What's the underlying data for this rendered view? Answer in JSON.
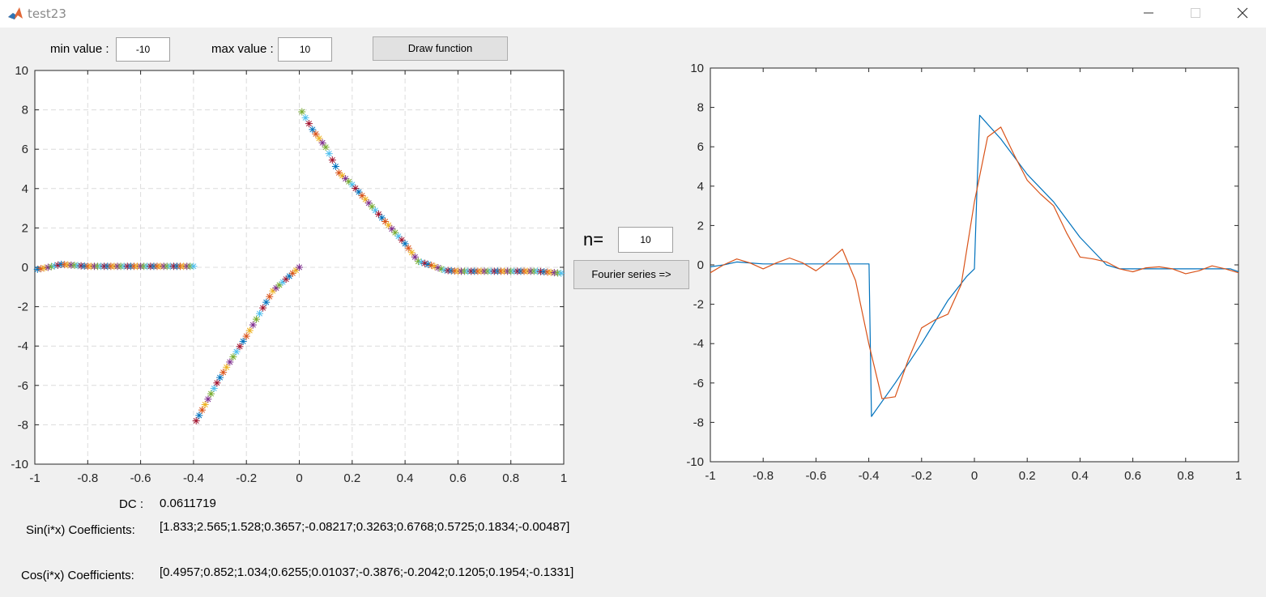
{
  "window": {
    "title": "test23"
  },
  "controls": {
    "min_label": "min value :",
    "min_value": "-10",
    "max_label": "max value :",
    "max_value": "10",
    "draw_button": "Draw function",
    "n_label": "n=",
    "n_value": "10",
    "fourier_button": "Fourier series =>"
  },
  "results": {
    "dc_label": "DC :",
    "dc_value": "0.0611719",
    "sin_label": "Sin(i*x) Coefficients:",
    "sin_value": "[1.833;2.565;1.528;0.3657;-0.08217;0.3263;0.6768;0.5725;0.1834;-0.00487]",
    "cos_label": "Cos(i*x) Coefficients:",
    "cos_value": "[0.4957;0.852;1.034;0.6255;0.01037;-0.3876;-0.2042;0.1205;0.1954;-0.1331]"
  },
  "colors": {
    "blue": "#0072bd",
    "orange": "#d95319",
    "yellow": "#edb120",
    "purple": "#7e2f8e",
    "green": "#77ac30",
    "cyan": "#4dbeee",
    "red": "#a2142f"
  },
  "chart_data": [
    {
      "type": "scatter",
      "marker": "asterisk",
      "grid": true,
      "xlim": [
        -1,
        1
      ],
      "ylim": [
        -10,
        10
      ],
      "xticks": [
        "-1",
        "-0.8",
        "-0.6",
        "-0.4",
        "-0.2",
        "0",
        "0.2",
        "0.4",
        "0.6",
        "0.8",
        "1"
      ],
      "yticks": [
        "-10",
        "-8",
        "-6",
        "-4",
        "-2",
        "0",
        "2",
        "4",
        "6",
        "8",
        "10"
      ],
      "segments": [
        {
          "x": [
            -0.99,
            -0.95,
            -0.9,
            -0.85,
            -0.8,
            -0.7,
            -0.6,
            -0.5,
            -0.4
          ],
          "y": [
            -0.1,
            0.0,
            0.15,
            0.1,
            0.05,
            0.05,
            0.05,
            0.05,
            0.05
          ]
        },
        {
          "x": [
            -0.39,
            -0.3,
            -0.2,
            -0.1,
            0.0
          ],
          "y": [
            -7.8,
            -5.6,
            -3.5,
            -1.2,
            0.0
          ]
        },
        {
          "x": [
            0.01,
            0.05,
            0.1,
            0.15,
            0.2,
            0.3,
            0.4,
            0.45,
            0.5,
            0.55,
            0.6,
            0.7,
            0.8,
            0.9,
            0.99
          ],
          "y": [
            7.9,
            7.0,
            6.1,
            4.8,
            4.2,
            2.7,
            1.2,
            0.3,
            0.1,
            -0.15,
            -0.2,
            -0.2,
            -0.2,
            -0.2,
            -0.3
          ]
        }
      ]
    },
    {
      "type": "line",
      "grid": false,
      "xlim": [
        -1,
        1
      ],
      "ylim": [
        -10,
        10
      ],
      "xticks": [
        "-1",
        "-0.8",
        "-0.6",
        "-0.4",
        "-0.2",
        "0",
        "0.2",
        "0.4",
        "0.6",
        "0.8",
        "1"
      ],
      "yticks": [
        "-10",
        "-8",
        "-6",
        "-4",
        "-2",
        "0",
        "2",
        "4",
        "6",
        "8",
        "10"
      ],
      "series": [
        {
          "x": [
            -1,
            -0.95,
            -0.9,
            -0.85,
            -0.8,
            -0.6,
            -0.4,
            -0.399,
            -0.39,
            -0.3,
            -0.2,
            -0.1,
            -0.03,
            0.0,
            0.01,
            0.02,
            0.1,
            0.2,
            0.3,
            0.4,
            0.5,
            0.55,
            0.6,
            0.7,
            0.8,
            0.9,
            0.97,
            1
          ],
          "y": [
            -0.1,
            0.0,
            0.15,
            0.1,
            0.05,
            0.05,
            0.05,
            0.05,
            -7.7,
            -6.0,
            -4.0,
            -1.8,
            -0.6,
            -0.2,
            4.0,
            7.6,
            6.4,
            4.6,
            3.2,
            1.4,
            0.0,
            -0.2,
            -0.2,
            -0.2,
            -0.2,
            -0.2,
            -0.2,
            -0.35
          ]
        },
        {
          "x": [
            -1,
            -0.95,
            -0.9,
            -0.85,
            -0.8,
            -0.75,
            -0.7,
            -0.65,
            -0.6,
            -0.55,
            -0.5,
            -0.45,
            -0.4,
            -0.35,
            -0.3,
            -0.25,
            -0.2,
            -0.15,
            -0.1,
            -0.05,
            0.0,
            0.05,
            0.1,
            0.15,
            0.2,
            0.25,
            0.3,
            0.35,
            0.4,
            0.45,
            0.5,
            0.55,
            0.6,
            0.65,
            0.7,
            0.75,
            0.8,
            0.85,
            0.9,
            0.95,
            1
          ],
          "y": [
            -0.4,
            0.0,
            0.3,
            0.1,
            -0.2,
            0.1,
            0.35,
            0.1,
            -0.3,
            0.2,
            0.8,
            -0.8,
            -4.0,
            -6.8,
            -6.7,
            -4.8,
            -3.2,
            -2.8,
            -2.5,
            -1.0,
            3.2,
            6.5,
            7.0,
            5.6,
            4.3,
            3.6,
            3.0,
            1.6,
            0.4,
            0.3,
            0.15,
            -0.2,
            -0.35,
            -0.15,
            -0.1,
            -0.2,
            -0.45,
            -0.3,
            -0.05,
            -0.2,
            -0.4
          ]
        }
      ]
    }
  ]
}
